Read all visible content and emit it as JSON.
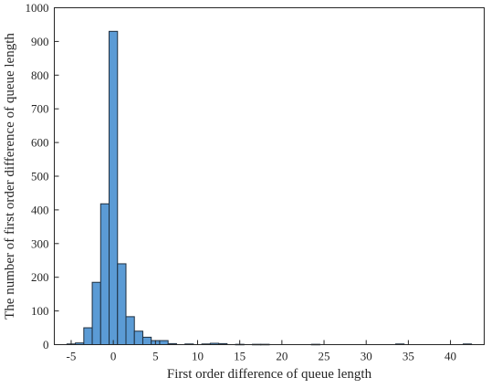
{
  "chart_data": {
    "type": "bar",
    "title": "",
    "xlabel": "First order difference of queue length",
    "ylabel": "The number of first order difference of queue length",
    "xlim": [
      -7,
      44
    ],
    "ylim": [
      0,
      1000
    ],
    "xticks": [
      -5,
      0,
      5,
      10,
      15,
      20,
      25,
      30,
      35,
      40
    ],
    "yticks": [
      0,
      100,
      200,
      300,
      400,
      500,
      600,
      700,
      800,
      900,
      1000
    ],
    "grid": false,
    "legend": "none",
    "bin_width": 1,
    "bar_color": "#5b9bd5",
    "bins": [
      {
        "x": -5,
        "value": 2
      },
      {
        "x": -4,
        "value": 5
      },
      {
        "x": -3,
        "value": 50
      },
      {
        "x": -2,
        "value": 185
      },
      {
        "x": -1,
        "value": 418
      },
      {
        "x": 0,
        "value": 930
      },
      {
        "x": 1,
        "value": 240
      },
      {
        "x": 2,
        "value": 83
      },
      {
        "x": 3,
        "value": 40
      },
      {
        "x": 4,
        "value": 22
      },
      {
        "x": 5,
        "value": 12
      },
      {
        "x": 6,
        "value": 12
      },
      {
        "x": 7,
        "value": 3
      },
      {
        "x": 9,
        "value": 2
      },
      {
        "x": 11,
        "value": 2
      },
      {
        "x": 12,
        "value": 4
      },
      {
        "x": 13,
        "value": 3
      },
      {
        "x": 15,
        "value": 1
      },
      {
        "x": 17,
        "value": 1
      },
      {
        "x": 18,
        "value": 1
      },
      {
        "x": 24,
        "value": 1
      },
      {
        "x": 34,
        "value": 2
      },
      {
        "x": 42,
        "value": 2
      }
    ]
  }
}
